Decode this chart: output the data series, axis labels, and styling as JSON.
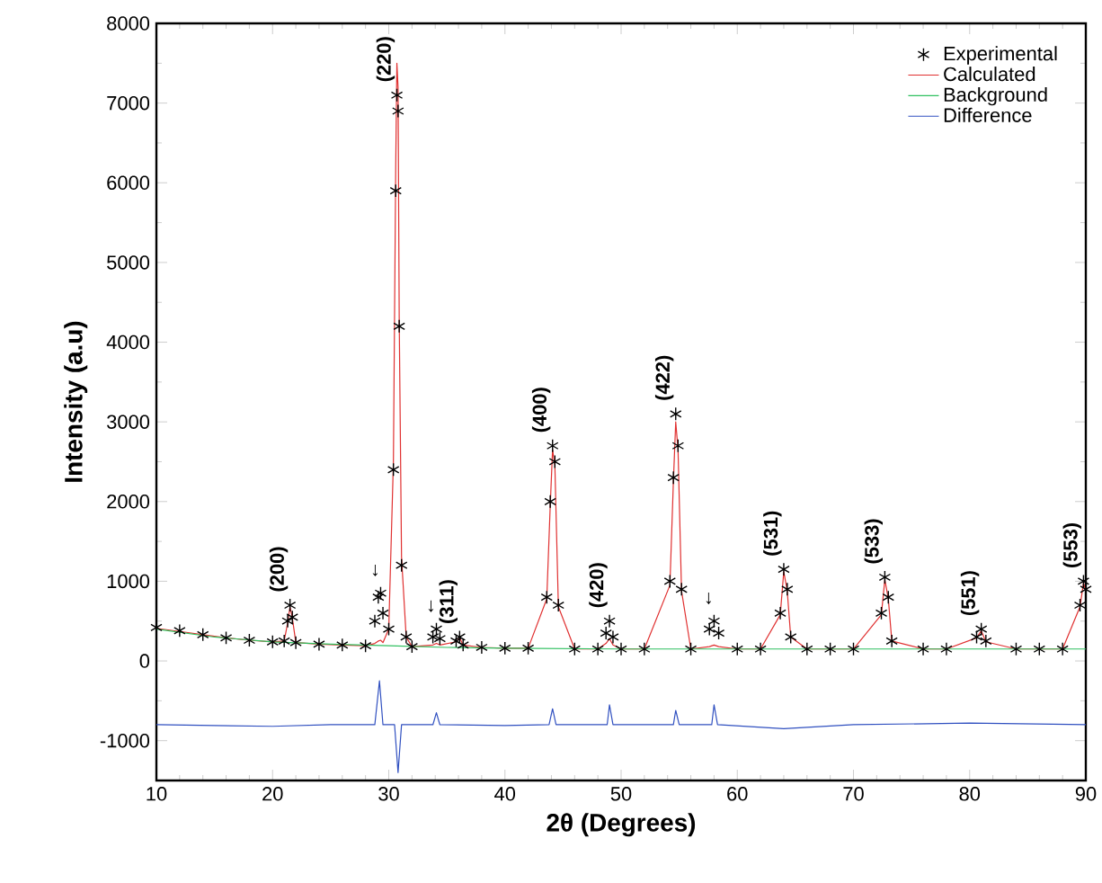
{
  "chart_data": {
    "type": "line",
    "xlabel": "2θ (Degrees)",
    "ylabel": "Intensity (a.u)",
    "xlim": [
      10,
      90
    ],
    "xticks": [
      10,
      20,
      30,
      40,
      50,
      60,
      70,
      80,
      90
    ],
    "ylim": [
      -1500,
      8000
    ],
    "yticks": [
      -1000,
      0,
      1000,
      2000,
      3000,
      4000,
      5000,
      6000,
      7000,
      8000
    ],
    "legend": "top right",
    "grid": false,
    "series": [
      {
        "name": "Experimental",
        "type": "scatter",
        "marker": "cross",
        "color": "#000000",
        "x": [
          10,
          12,
          14,
          16,
          18,
          20,
          21,
          21.3,
          21.5,
          21.7,
          22,
          24,
          26,
          28,
          28.8,
          29.1,
          29.3,
          29.5,
          30,
          30.4,
          30.6,
          30.7,
          30.8,
          30.9,
          31.1,
          31.5,
          32,
          33.8,
          34.1,
          34.4,
          35.8,
          36.1,
          36.4,
          38,
          40,
          42,
          43.6,
          43.9,
          44.1,
          44.3,
          44.6,
          46,
          48,
          48.7,
          49,
          49.3,
          50,
          52,
          54.2,
          54.5,
          54.7,
          54.9,
          55.2,
          56,
          57.6,
          58,
          58.4,
          60,
          62,
          63.7,
          64,
          64.3,
          64.6,
          66,
          68,
          70,
          72.4,
          72.7,
          73,
          73.3,
          76,
          78,
          80.6,
          81,
          81.4,
          84,
          86,
          88,
          89.5,
          89.8,
          90
        ],
        "values": [
          420,
          380,
          330,
          290,
          260,
          240,
          250,
          500,
          700,
          550,
          230,
          210,
          200,
          190,
          500,
          800,
          850,
          600,
          400,
          2400,
          5900,
          7100,
          6900,
          4200,
          1200,
          300,
          180,
          300,
          400,
          280,
          250,
          300,
          200,
          170,
          160,
          160,
          800,
          2000,
          2700,
          2500,
          700,
          150,
          150,
          350,
          500,
          300,
          150,
          150,
          1000,
          2300,
          3100,
          2700,
          900,
          150,
          400,
          500,
          350,
          150,
          150,
          600,
          1150,
          900,
          300,
          150,
          150,
          150,
          600,
          1050,
          800,
          250,
          150,
          150,
          300,
          400,
          250,
          150,
          150,
          150,
          700,
          1000,
          900
        ]
      },
      {
        "name": "Calculated",
        "marker": "none",
        "color": "#e03030",
        "x": [
          10,
          12,
          14,
          16,
          18,
          20,
          21,
          21.3,
          21.5,
          21.7,
          22,
          24,
          26,
          28,
          28.8,
          29.1,
          29.3,
          29.5,
          30,
          30.4,
          30.6,
          30.7,
          30.8,
          30.9,
          31.1,
          31.5,
          32,
          33.8,
          34.1,
          34.4,
          35.8,
          36.1,
          36.4,
          38,
          40,
          42,
          43.6,
          43.9,
          44.1,
          44.3,
          44.6,
          46,
          48,
          48.7,
          49,
          49.3,
          50,
          52,
          54.2,
          54.5,
          54.7,
          54.9,
          55.2,
          56,
          57.6,
          58,
          58.4,
          60,
          62,
          63.7,
          64,
          64.3,
          64.6,
          66,
          68,
          70,
          72.4,
          72.7,
          73,
          73.3,
          76,
          78,
          80.6,
          81,
          81.4,
          84,
          86,
          88,
          89.5,
          89.8,
          90
        ],
        "values": [
          410,
          370,
          330,
          290,
          260,
          240,
          250,
          480,
          680,
          540,
          230,
          210,
          200,
          190,
          220,
          250,
          260,
          230,
          400,
          2500,
          6200,
          7500,
          7200,
          4300,
          1300,
          300,
          180,
          200,
          220,
          200,
          240,
          290,
          200,
          170,
          160,
          160,
          780,
          1950,
          2650,
          2450,
          680,
          150,
          150,
          220,
          280,
          200,
          150,
          150,
          950,
          2250,
          3000,
          2650,
          880,
          150,
          180,
          200,
          180,
          150,
          150,
          580,
          1120,
          880,
          300,
          150,
          150,
          150,
          580,
          1020,
          780,
          250,
          150,
          150,
          290,
          380,
          240,
          150,
          150,
          150,
          680,
          980,
          880
        ]
      },
      {
        "name": "Background",
        "marker": "none",
        "color": "#30c060",
        "x": [
          10,
          15,
          20,
          25,
          30,
          35,
          40,
          50,
          60,
          70,
          80,
          90
        ],
        "values": [
          400,
          300,
          240,
          210,
          190,
          170,
          160,
          150,
          150,
          150,
          150,
          150
        ]
      },
      {
        "name": "Difference",
        "marker": "none",
        "color": "#3050c0",
        "x": [
          10,
          15,
          20,
          25,
          28.8,
          29.2,
          29.5,
          30.5,
          30.8,
          31.1,
          33.8,
          34.1,
          34.4,
          40,
          43.8,
          44.1,
          44.4,
          48.8,
          49,
          49.3,
          54.5,
          54.7,
          55,
          57.8,
          58,
          58.3,
          64,
          70,
          80,
          90
        ],
        "values": [
          -800,
          -810,
          -820,
          -800,
          -800,
          -250,
          -800,
          -800,
          -1400,
          -800,
          -800,
          -650,
          -800,
          -810,
          -800,
          -600,
          -800,
          -800,
          -550,
          -800,
          -800,
          -620,
          -800,
          -800,
          -550,
          -800,
          -850,
          -800,
          -780,
          -800
        ]
      }
    ],
    "annotations": [
      {
        "text": "(200)",
        "x": 21.5,
        "y": 700
      },
      {
        "text": "(220)",
        "x": 30.7,
        "y": 7100
      },
      {
        "text": "(311)",
        "x": 36.1,
        "y": 300
      },
      {
        "text": "(400)",
        "x": 44.1,
        "y": 2700
      },
      {
        "text": "(420)",
        "x": 49,
        "y": 500
      },
      {
        "text": "(422)",
        "x": 54.7,
        "y": 3100
      },
      {
        "text": "(531)",
        "x": 64,
        "y": 1150
      },
      {
        "text": "(533)",
        "x": 72.7,
        "y": 1050
      },
      {
        "text": "(551)",
        "x": 81,
        "y": 400
      },
      {
        "text": "(553)",
        "x": 89.8,
        "y": 1000
      },
      {
        "text": "←",
        "x": 29.3,
        "y": 850
      },
      {
        "text": "←",
        "x": 34.1,
        "y": 400
      },
      {
        "text": "←",
        "x": 58,
        "y": 500
      }
    ]
  }
}
